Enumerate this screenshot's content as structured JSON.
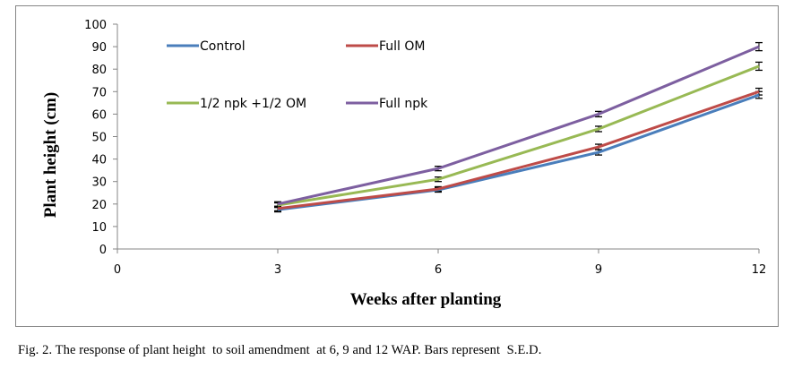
{
  "chart_data": {
    "type": "line",
    "title": "",
    "xlabel": "Weeks after planting",
    "ylabel": "Plant height (cm)",
    "xlim": [
      0,
      12
    ],
    "ylim": [
      0,
      100
    ],
    "x_ticks": [
      0,
      3,
      6,
      9,
      12
    ],
    "y_ticks": [
      0,
      10,
      20,
      30,
      40,
      50,
      60,
      70,
      80,
      90,
      100
    ],
    "x": [
      3,
      6,
      9,
      12
    ],
    "grid": false,
    "legend_position": "top-left inside",
    "error_bars": "S.E.D.",
    "series": [
      {
        "name": "Control",
        "color": "#4a7ebb",
        "values": [
          17.5,
          26.3,
          43,
          68.5
        ],
        "err": [
          1,
          1,
          1.2,
          1.5
        ]
      },
      {
        "name": "Full OM",
        "color": "#be4b48",
        "values": [
          18,
          26.7,
          45.4,
          70
        ],
        "err": [
          1,
          1,
          1.2,
          1.5
        ]
      },
      {
        "name": "1/2 npk +1/2 OM",
        "color": "#98b954",
        "values": [
          19.5,
          31,
          53.4,
          81.3
        ],
        "err": [
          1,
          1,
          1.2,
          1.8
        ]
      },
      {
        "name": "Full npk",
        "color": "#7d5fa0",
        "values": [
          20,
          35.8,
          60,
          90
        ],
        "err": [
          1,
          1,
          1.2,
          1.8
        ]
      }
    ]
  },
  "caption": "Fig. 2. The response of plant height  to soil amendment  at 6, 9 and 12 WAP. Bars represent  S.E.D."
}
